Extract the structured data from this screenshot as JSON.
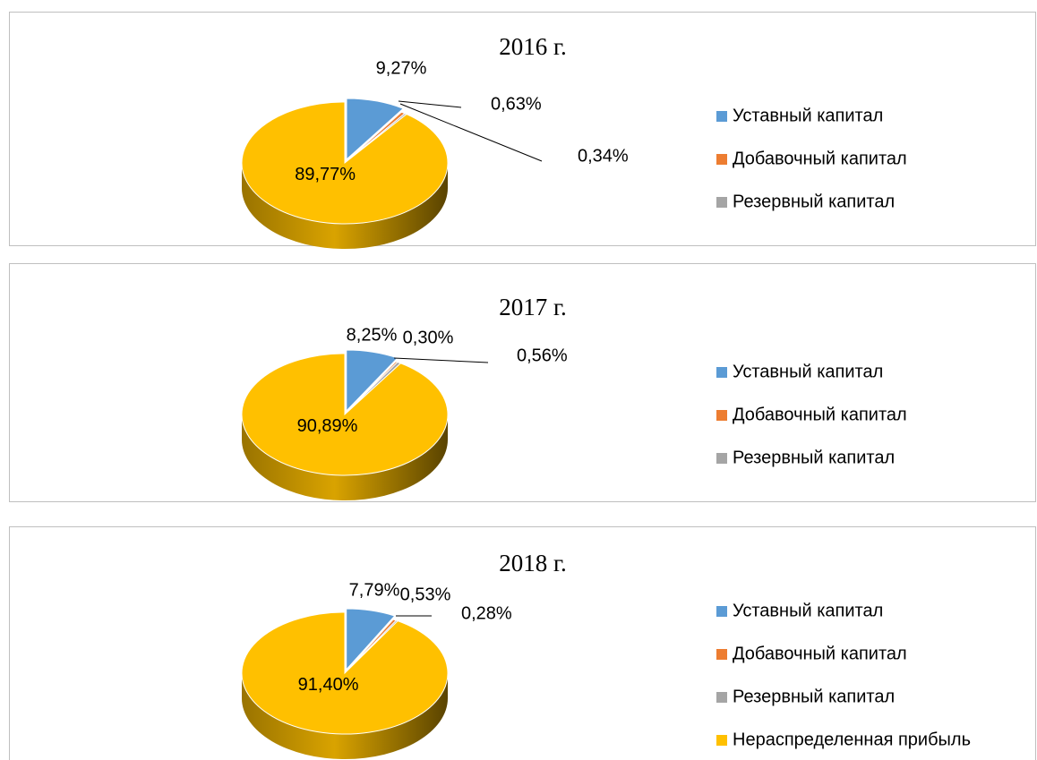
{
  "chart_data": [
    {
      "type": "pie",
      "title": "2016 г.",
      "categories": [
        "Уставный капитал",
        "Добавочный капитал",
        "Резервный капитал",
        null
      ],
      "values": [
        9.27,
        0.63,
        0.34,
        89.77
      ],
      "value_labels": [
        "9,27%",
        "0,63%",
        "0,34%",
        "89,77%"
      ],
      "colors": [
        "#5b9bd5",
        "#ed7d31",
        "#a5a5a5",
        "#ffc000"
      ]
    },
    {
      "type": "pie",
      "title": "2017 г.",
      "categories": [
        "Уставный капитал",
        "Добавочный капитал",
        "Резервный капитал",
        null
      ],
      "values": [
        8.25,
        0.3,
        0.56,
        90.89
      ],
      "value_labels": [
        "8,25%",
        "0,30%",
        "0,56%",
        "90,89%"
      ],
      "colors": [
        "#5b9bd5",
        "#ed7d31",
        "#a5a5a5",
        "#ffc000"
      ]
    },
    {
      "type": "pie",
      "title": "2018 г.",
      "categories": [
        "Уставный капитал",
        "Добавочный капитал",
        "Резервный капитал",
        "Нераспределенная прибыль"
      ],
      "values": [
        7.79,
        0.53,
        0.28,
        91.4
      ],
      "value_labels": [
        "7,79%",
        "0,53%",
        "0,28%",
        "91,40%"
      ],
      "colors": [
        "#5b9bd5",
        "#ed7d31",
        "#a5a5a5",
        "#ffc000"
      ]
    }
  ]
}
